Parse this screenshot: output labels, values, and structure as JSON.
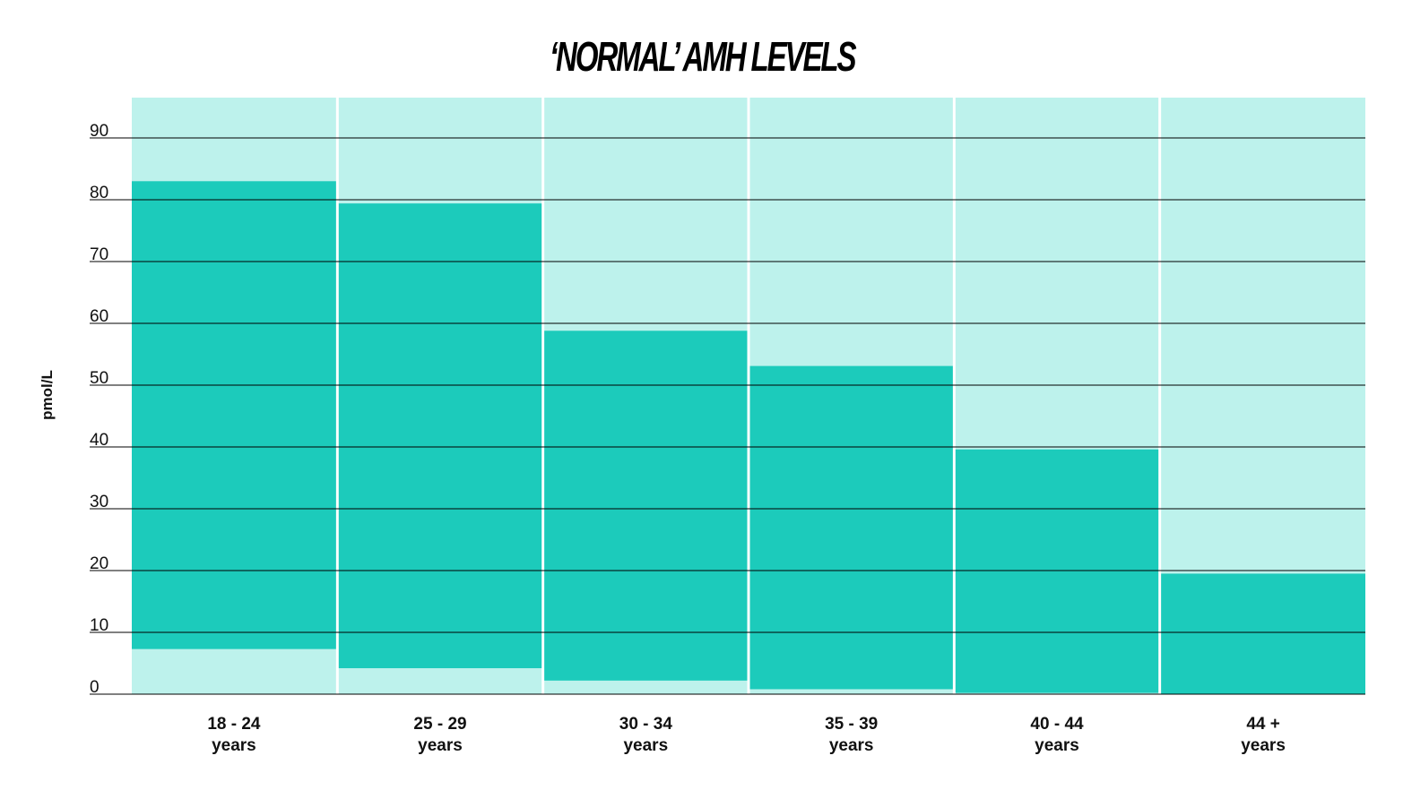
{
  "chart_data": {
    "type": "bar",
    "title": "‘NORMAL’ AMH LEVELS",
    "ylabel": "pmol/L",
    "xlabel": "",
    "ylim": [
      0,
      96
    ],
    "yticks": [
      0,
      10,
      20,
      30,
      40,
      50,
      60,
      70,
      80,
      90
    ],
    "categories": [
      {
        "line1": "18 - 24",
        "line2": "years"
      },
      {
        "line1": "25 - 29",
        "line2": "years"
      },
      {
        "line1": "30 - 34",
        "line2": "years"
      },
      {
        "line1": "35 - 39",
        "line2": "years"
      },
      {
        "line1": "40 - 44",
        "line2": "years"
      },
      {
        "line1": "44 +",
        "line2": "years"
      }
    ],
    "ranges": [
      {
        "low": 7.3,
        "high": 83
      },
      {
        "low": 4.2,
        "high": 79.4
      },
      {
        "low": 2.2,
        "high": 58.8
      },
      {
        "low": 0.8,
        "high": 53.1
      },
      {
        "low": 0.2,
        "high": 39.6
      },
      {
        "low": 0,
        "high": 19.5
      }
    ],
    "grid": true,
    "colors": {
      "range": "#1ccbbb",
      "background": "#bdf2ec",
      "gridline": "#000000",
      "divider": "#ffffff"
    }
  }
}
